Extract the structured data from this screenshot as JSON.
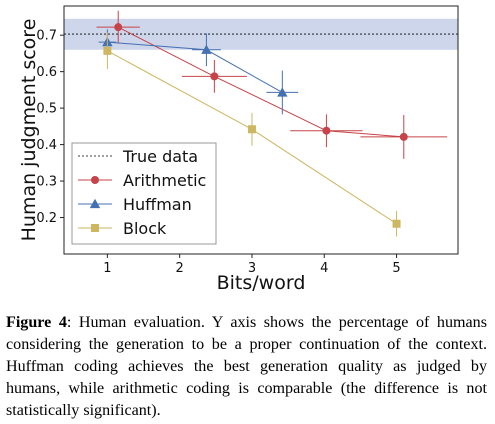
{
  "chart_data": {
    "type": "line",
    "xlabel": "Bits/word",
    "ylabel": "Human judgment score",
    "xlim": [
      0.4,
      5.85
    ],
    "ylim": [
      0.1,
      0.78
    ],
    "xticks": [
      1,
      2,
      3,
      4,
      5
    ],
    "yticks": [
      0.2,
      0.3,
      0.4,
      0.5,
      0.6,
      0.7
    ],
    "grid": false,
    "legend_position": "bottom-left",
    "reference": {
      "name": "True data",
      "value": 0.703,
      "band": [
        0.66,
        0.745
      ],
      "color": "#000000",
      "band_color": "#cdd6ea"
    },
    "series": [
      {
        "name": "Arithmetic",
        "color": "#c64449",
        "marker": "circle",
        "points": [
          {
            "x": 1.15,
            "y": 0.722,
            "xerr": 0.3,
            "yerr": 0.045
          },
          {
            "x": 2.48,
            "y": 0.587,
            "xerr": 0.45,
            "yerr": 0.045
          },
          {
            "x": 4.03,
            "y": 0.438,
            "xerr": 0.5,
            "yerr": 0.045
          },
          {
            "x": 5.1,
            "y": 0.421,
            "xerr": 0.6,
            "yerr": 0.06
          }
        ]
      },
      {
        "name": "Huffman",
        "color": "#4471b1",
        "marker": "triangle",
        "points": [
          {
            "x": 1.0,
            "y": 0.681,
            "xerr": 0.12,
            "yerr": 0.035
          },
          {
            "x": 2.37,
            "y": 0.66,
            "xerr": 0.2,
            "yerr": 0.045
          },
          {
            "x": 3.42,
            "y": 0.543,
            "xerr": 0.22,
            "yerr": 0.06
          }
        ]
      },
      {
        "name": "Block",
        "color": "#cdb760",
        "marker": "square",
        "points": [
          {
            "x": 1.0,
            "y": 0.657,
            "xerr": 0.0,
            "yerr": 0.05
          },
          {
            "x": 3.0,
            "y": 0.442,
            "xerr": 0.0,
            "yerr": 0.045
          },
          {
            "x": 5.0,
            "y": 0.183,
            "xerr": 0.0,
            "yerr": 0.035
          }
        ]
      }
    ]
  },
  "caption": {
    "label": "Figure 4",
    "text": ": Human evaluation. Y axis shows the percentage of humans considering the generation to be a proper continuation of the context. Huffman coding achieves the best generation quality as judged by humans, while arithmetic coding is comparable (the difference is not statistically significant)."
  }
}
